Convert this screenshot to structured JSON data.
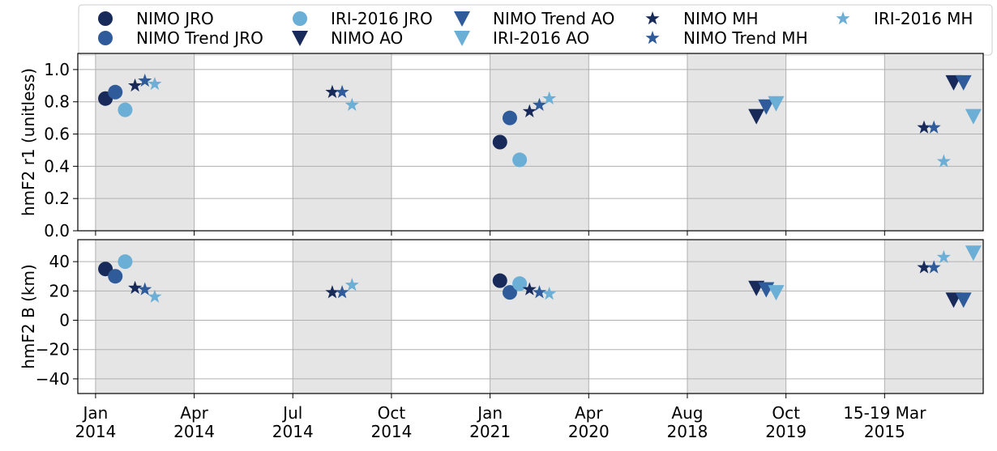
{
  "chart_data": [
    {
      "type": "scatter",
      "ylabel": "hmF2 r1 (unitless)",
      "xlim": [
        -0.18,
        9.0
      ],
      "xticks": [
        {
          "value": 0,
          "label": "Jan\n2014"
        },
        {
          "value": 1,
          "label": "Apr\n2014"
        },
        {
          "value": 2,
          "label": "Jul\n2014"
        },
        {
          "value": 3,
          "label": "Oct\n2014"
        },
        {
          "value": 4,
          "label": "Jan\n2021"
        },
        {
          "value": 5,
          "label": "Apr\n2020"
        },
        {
          "value": 6,
          "label": "Aug\n2018"
        },
        {
          "value": 7,
          "label": "Oct\n2019"
        },
        {
          "value": 8,
          "label": "15-19 Mar\n2015"
        }
      ],
      "ylim": [
        0,
        1.1
      ],
      "yticks": [
        {
          "value": 0,
          "label": "0.0"
        },
        0.2,
        0.4,
        0.6,
        0.8,
        {
          "value": 1,
          "label": "1.0"
        }
      ],
      "grid": true,
      "legend": "top",
      "series": [
        {
          "name": "NIMO JRO",
          "color": "#172a5a",
          "marker": "o",
          "x": [
            0.1,
            4.1
          ],
          "values": [
            0.82,
            0.55
          ]
        },
        {
          "name": "NIMO Trend JRO",
          "color": "#2f5b9a",
          "marker": "o",
          "x": [
            0.2,
            4.2
          ],
          "values": [
            0.86,
            0.7
          ]
        },
        {
          "name": "IRI-2016 JRO",
          "color": "#6baed6",
          "marker": "o",
          "x": [
            0.3,
            4.3
          ],
          "values": [
            0.75,
            0.44
          ]
        },
        {
          "name": "NIMO AO",
          "color": "#172a5a",
          "marker": "v",
          "x": [
            6.7,
            8.7
          ],
          "values": [
            0.71,
            0.92
          ]
        },
        {
          "name": "NIMO Trend AO",
          "color": "#2f5b9a",
          "marker": "v",
          "x": [
            6.8,
            8.8
          ],
          "values": [
            0.77,
            0.92
          ]
        },
        {
          "name": "IRI-2016 AO",
          "color": "#6baed6",
          "marker": "v",
          "x": [
            6.9,
            8.9
          ],
          "values": [
            0.79,
            0.71
          ]
        },
        {
          "name": "NIMO MH",
          "color": "#172a5a",
          "marker": "*",
          "x": [
            0.4,
            2.4,
            4.4,
            8.4
          ],
          "values": [
            0.9,
            0.86,
            0.74,
            0.64
          ]
        },
        {
          "name": "NIMO Trend MH",
          "color": "#2f5b9a",
          "marker": "*",
          "x": [
            0.5,
            2.5,
            4.5,
            8.5
          ],
          "values": [
            0.93,
            0.86,
            0.78,
            0.64
          ]
        },
        {
          "name": "IRI-2016 MH",
          "color": "#6baed6",
          "marker": "*",
          "x": [
            0.6,
            2.6,
            4.6,
            8.6
          ],
          "values": [
            0.91,
            0.78,
            0.82,
            0.43
          ]
        }
      ]
    },
    {
      "type": "scatter",
      "ylabel": "hmF2 B (km)",
      "xlim": [
        -0.18,
        9.0
      ],
      "xticks": [
        {
          "value": 0,
          "label": "Jan\n2014"
        },
        {
          "value": 1,
          "label": "Apr\n2014"
        },
        {
          "value": 2,
          "label": "Jul\n2014"
        },
        {
          "value": 3,
          "label": "Oct\n2014"
        },
        {
          "value": 4,
          "label": "Jan\n2021"
        },
        {
          "value": 5,
          "label": "Apr\n2020"
        },
        {
          "value": 6,
          "label": "Aug\n2018"
        },
        {
          "value": 7,
          "label": "Oct\n2019"
        },
        {
          "value": 8,
          "label": "15-19 Mar\n2015"
        }
      ],
      "ylim": [
        -50,
        55
      ],
      "yticks": [
        {
          "value": -40,
          "label": "−40"
        },
        {
          "value": -20,
          "label": "−20"
        },
        0,
        20,
        40
      ],
      "grid": true,
      "series": [
        {
          "name": "NIMO JRO",
          "color": "#172a5a",
          "marker": "o",
          "x": [
            0.1,
            4.1
          ],
          "values": [
            35,
            27
          ]
        },
        {
          "name": "NIMO Trend JRO",
          "color": "#2f5b9a",
          "marker": "o",
          "x": [
            0.2,
            4.2
          ],
          "values": [
            30,
            19
          ]
        },
        {
          "name": "IRI-2016 JRO",
          "color": "#6baed6",
          "marker": "o",
          "x": [
            0.3,
            4.3
          ],
          "values": [
            40,
            25
          ]
        },
        {
          "name": "NIMO AO",
          "color": "#172a5a",
          "marker": "v",
          "x": [
            6.7,
            8.7
          ],
          "values": [
            22,
            14
          ]
        },
        {
          "name": "NIMO Trend AO",
          "color": "#2f5b9a",
          "marker": "v",
          "x": [
            6.8,
            8.8
          ],
          "values": [
            21,
            14
          ]
        },
        {
          "name": "IRI-2016 AO",
          "color": "#6baed6",
          "marker": "v",
          "x": [
            6.9,
            8.9
          ],
          "values": [
            19,
            46
          ]
        },
        {
          "name": "NIMO MH",
          "color": "#172a5a",
          "marker": "*",
          "x": [
            0.4,
            2.4,
            4.4,
            8.4
          ],
          "values": [
            22,
            19,
            21,
            36
          ]
        },
        {
          "name": "NIMO Trend MH",
          "color": "#2f5b9a",
          "marker": "*",
          "x": [
            0.5,
            2.5,
            4.5,
            8.5
          ],
          "values": [
            21,
            19,
            19,
            36
          ]
        },
        {
          "name": "IRI-2016 MH",
          "color": "#6baed6",
          "marker": "*",
          "x": [
            0.6,
            2.6,
            4.6,
            8.6
          ],
          "values": [
            16,
            24,
            18,
            43
          ]
        }
      ]
    }
  ]
}
